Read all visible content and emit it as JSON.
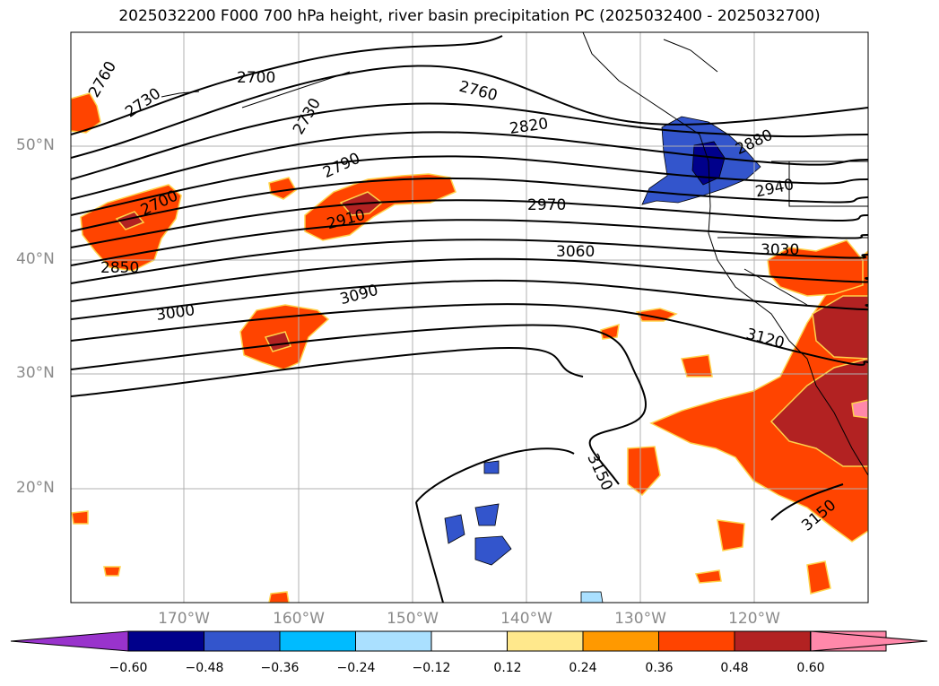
{
  "title": "2025032200 F000 700 hPa height, river basin precipitation PC (2025032400 - 2025032700)",
  "map": {
    "lat_labels": [
      "50°N",
      "40°N",
      "30°N",
      "20°N"
    ],
    "lon_labels": [
      "170°W",
      "160°W",
      "150°W",
      "140°W",
      "130°W",
      "120°W"
    ],
    "contour_labels": [
      "2760",
      "2730",
      "2700",
      "2730",
      "2760",
      "2820",
      "2880",
      "2940",
      "2970",
      "3030",
      "3060",
      "3120",
      "3150",
      "3150",
      "2790",
      "2910",
      "3090",
      "3000",
      "2850",
      "2700"
    ],
    "contour_color": "#000000",
    "grid_color": "#b0b0b0"
  },
  "colorbar": {
    "ticks": [
      "−0.60",
      "−0.48",
      "−0.36",
      "−0.24",
      "−0.12",
      "0.12",
      "0.24",
      "0.36",
      "0.48",
      "0.60"
    ],
    "colors": [
      "#9933cc",
      "#00008b",
      "#3355cc",
      "#00bbff",
      "#aae0ff",
      "#ffffff",
      "#ffe88c",
      "#ff9900",
      "#ff4400",
      "#b22222",
      "#ff88aa",
      "#ff88aa"
    ]
  }
}
